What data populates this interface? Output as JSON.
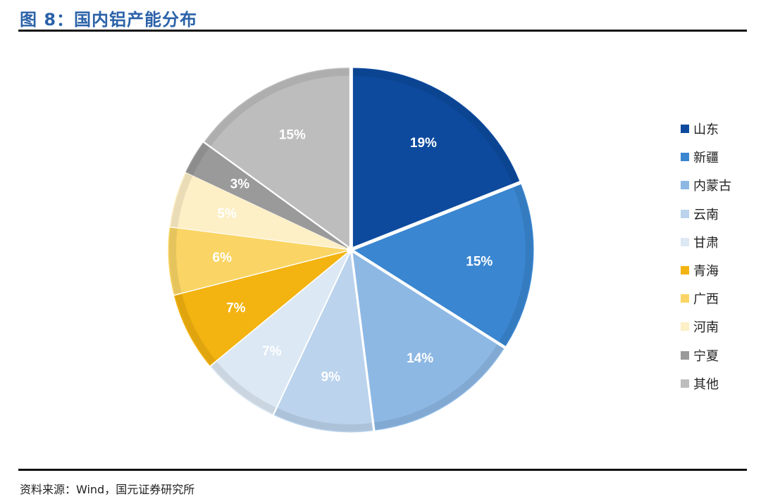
{
  "header": {
    "title": "图 8：国内铝产能分布"
  },
  "footer": {
    "source": "资料来源：Wind，国元证券研究所"
  },
  "chart_data": {
    "type": "pie",
    "start_angle_deg": 0,
    "direction": "clockwise",
    "legend_position": "right",
    "slices": [
      {
        "name": "山东",
        "value": 19,
        "label": "19%",
        "color": "#0d4a9e",
        "label_color": "#ffffff"
      },
      {
        "name": "新疆",
        "value": 15,
        "label": "15%",
        "color": "#3a86d1",
        "label_color": "#ffffff"
      },
      {
        "name": "内蒙古",
        "value": 14,
        "label": "14%",
        "color": "#8db8e4",
        "label_color": "#ffffff"
      },
      {
        "name": "云南",
        "value": 9,
        "label": "9%",
        "color": "#bbd3ec",
        "label_color": "#ffffff"
      },
      {
        "name": "甘肃",
        "value": 7,
        "label": "7%",
        "color": "#dce8f4",
        "label_color": "#ffffff"
      },
      {
        "name": "青海",
        "value": 7,
        "label": "7%",
        "color": "#f3b310",
        "label_color": "#ffffff"
      },
      {
        "name": "广西",
        "value": 6,
        "label": "6%",
        "color": "#fad565",
        "label_color": "#ffffff"
      },
      {
        "name": "河南",
        "value": 5,
        "label": "5%",
        "color": "#fdefc6",
        "label_color": "#ffffff"
      },
      {
        "name": "宁夏",
        "value": 3,
        "label": "3%",
        "color": "#9a9a9a",
        "label_color": "#ffffff"
      },
      {
        "name": "其他",
        "value": 15,
        "label": "15%",
        "color": "#bdbdbd",
        "label_color": "#ffffff"
      }
    ]
  }
}
